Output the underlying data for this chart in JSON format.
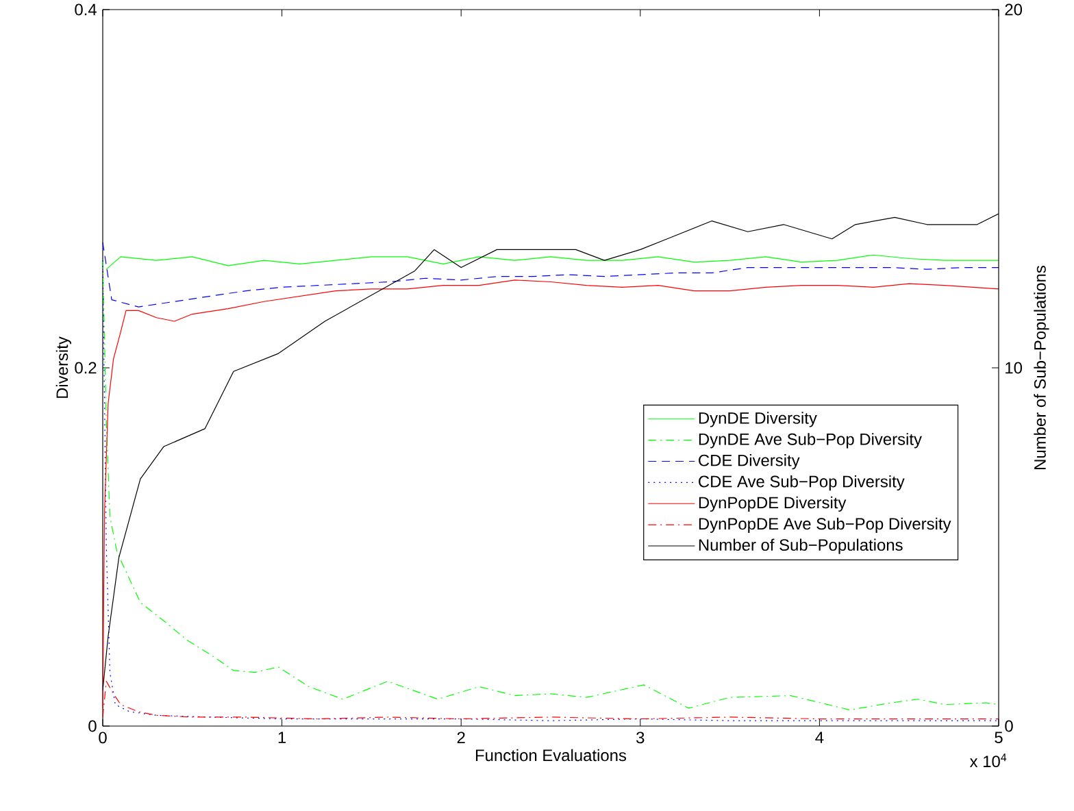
{
  "chart_data": {
    "type": "line",
    "xlabel": "Function Evaluations",
    "ylabel": "Diversity",
    "y2label": "Number of Sub−Populations",
    "xlim": [
      0,
      5
    ],
    "xticks": [
      0,
      1,
      2,
      3,
      4,
      5
    ],
    "ylim": [
      0,
      0.4
    ],
    "yticks": [
      0,
      0.2,
      0.4
    ],
    "y2lim": [
      0,
      20
    ],
    "y2ticks": [
      0,
      10,
      20
    ],
    "legend": "right",
    "grid": false,
    "marker": "none",
    "annotations": [
      "x 10$^{4}$"
    ],
    "series": [
      {
        "name": "DynDE Diversity",
        "color": "#00ff00",
        "line_style": "solid",
        "x": [
          0.02,
          0.1,
          0.3,
          0.5,
          0.7,
          0.9,
          1.1,
          1.3,
          1.5,
          1.7,
          1.9,
          2.1,
          2.3,
          2.5,
          2.7,
          2.9,
          3.1,
          3.3,
          3.5,
          3.7,
          3.9,
          4.1,
          4.3,
          4.5,
          4.7,
          5
        ],
        "values": [
          0.255,
          0.262,
          0.26,
          0.262,
          0.257,
          0.26,
          0.258,
          0.26,
          0.262,
          0.262,
          0.258,
          0.262,
          0.26,
          0.262,
          0.26,
          0.26,
          0.262,
          0.259,
          0.26,
          0.262,
          0.259,
          0.26,
          0.263,
          0.261,
          0.26,
          0.26
        ]
      },
      {
        "name": "DynDE Ave Sub−Pop Diversity",
        "color": "#00ff00",
        "line_style": "dashdot",
        "x": [
          0,
          0.02,
          0.04,
          0.08,
          0.21,
          0.35,
          0.47,
          0.6,
          0.73,
          0.85,
          0.98,
          1.15,
          1.34,
          1.59,
          1.87,
          2.1,
          2.3,
          2.5,
          2.7,
          3.02,
          3.27,
          3.5,
          3.84,
          4.17,
          4.4,
          4.55,
          4.7,
          4.93,
          5
        ],
        "values": [
          0.26,
          0.17,
          0.117,
          0.097,
          0.069,
          0.058,
          0.048,
          0.04,
          0.031,
          0.03,
          0.033,
          0.022,
          0.015,
          0.025,
          0.015,
          0.022,
          0.017,
          0.018,
          0.016,
          0.023,
          0.01,
          0.016,
          0.017,
          0.009,
          0.013,
          0.015,
          0.012,
          0.013,
          0.012
        ]
      },
      {
        "name": "CDE Diversity",
        "color": "#0000ff",
        "line_style": "dashed",
        "x": [
          0,
          0.05,
          0.2,
          0.4,
          0.6,
          0.8,
          1,
          1.2,
          1.4,
          1.6,
          1.8,
          2,
          2.2,
          2.4,
          2.6,
          2.8,
          3,
          3.2,
          3.4,
          3.6,
          3.8,
          4,
          4.2,
          4.4,
          4.6,
          4.8,
          5
        ],
        "values": [
          0.27,
          0.238,
          0.234,
          0.237,
          0.24,
          0.243,
          0.245,
          0.246,
          0.247,
          0.248,
          0.25,
          0.249,
          0.251,
          0.251,
          0.252,
          0.251,
          0.252,
          0.253,
          0.253,
          0.256,
          0.256,
          0.256,
          0.256,
          0.256,
          0.255,
          0.256,
          0.256
        ]
      },
      {
        "name": "CDE Ave Sub−Pop Diversity",
        "color": "#0000ff",
        "line_style": "dotted",
        "x": [
          0,
          0.02,
          0.04,
          0.07,
          0.15,
          0.3,
          0.6,
          1,
          1.5,
          2,
          2.5,
          3,
          3.5,
          4,
          4.5,
          5
        ],
        "values": [
          0.26,
          0.1,
          0.03,
          0.012,
          0.008,
          0.006,
          0.005,
          0.004,
          0.004,
          0.004,
          0.003,
          0.004,
          0.003,
          0.003,
          0.003,
          0.003
        ]
      },
      {
        "name": "DynPopDE Diversity",
        "color": "#ff0000",
        "line_style": "solid",
        "x": [
          0,
          0.01,
          0.03,
          0.06,
          0.1,
          0.13,
          0.2,
          0.3,
          0.4,
          0.5,
          0.7,
          0.9,
          1.1,
          1.3,
          1.5,
          1.7,
          1.9,
          2.1,
          2.3,
          2.5,
          2.7,
          2.9,
          3.1,
          3.3,
          3.5,
          3.7,
          3.9,
          4.1,
          4.3,
          4.5,
          4.7,
          5
        ],
        "values": [
          0.01,
          0.12,
          0.18,
          0.205,
          0.22,
          0.232,
          0.232,
          0.228,
          0.226,
          0.23,
          0.233,
          0.237,
          0.24,
          0.243,
          0.244,
          0.244,
          0.246,
          0.246,
          0.249,
          0.248,
          0.246,
          0.245,
          0.246,
          0.243,
          0.243,
          0.245,
          0.246,
          0.246,
          0.245,
          0.247,
          0.246,
          0.244
        ]
      },
      {
        "name": "DynPopDE Ave Sub−Pop Diversity",
        "color": "#ff0000",
        "line_style": "dashdot",
        "x": [
          0,
          0.02,
          0.06,
          0.1,
          0.2,
          0.3,
          0.5,
          0.8,
          1.2,
          1.6,
          2,
          2.5,
          3,
          3.5,
          4,
          4.5,
          5
        ],
        "values": [
          0.005,
          0.025,
          0.018,
          0.012,
          0.008,
          0.006,
          0.005,
          0.005,
          0.004,
          0.005,
          0.004,
          0.005,
          0.004,
          0.005,
          0.004,
          0.004,
          0.004
        ]
      },
      {
        "name": "Number of Sub−Populations",
        "color": "#000000",
        "line_style": "solid",
        "axis": "y2",
        "x": [
          0,
          0.03,
          0.09,
          0.21,
          0.34,
          0.57,
          0.73,
          0.98,
          1.24,
          1.49,
          1.74,
          1.85,
          2,
          2.2,
          2.5,
          2.64,
          2.8,
          3,
          3.15,
          3.4,
          3.6,
          3.8,
          4.07,
          4.2,
          4.42,
          4.6,
          4.88,
          5
        ],
        "values": [
          1,
          2.5,
          4.7,
          6.9,
          7.8,
          8.3,
          9.9,
          10.4,
          11.3,
          12.0,
          12.7,
          13.3,
          12.8,
          13.3,
          13.3,
          13.3,
          13.0,
          13.3,
          13.6,
          14.1,
          13.8,
          14.0,
          13.6,
          14.0,
          14.2,
          14.0,
          14.0,
          14.3
        ]
      }
    ]
  }
}
